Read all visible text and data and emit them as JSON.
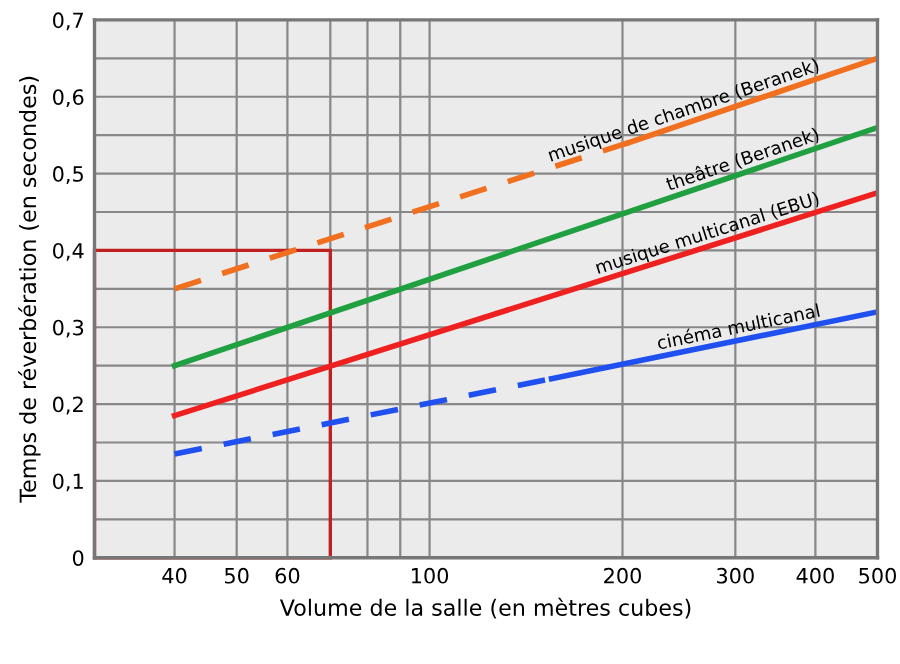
{
  "chart_data": {
    "type": "line",
    "xlabel": "Volume de la salle (en mètres cubes)",
    "ylabel": "Temps de réverbération (en secondes)",
    "log": "x",
    "xlim": [
      30,
      500
    ],
    "ylim": [
      0,
      0.7
    ],
    "xticks": [
      40,
      50,
      60,
      {
        "value": 70,
        "label": null
      },
      {
        "value": 80,
        "label": null
      },
      {
        "value": 90,
        "label": null
      },
      100,
      200,
      300,
      400,
      500
    ],
    "yticks": [
      0,
      {
        "value": 0.05,
        "label": null
      },
      {
        "value": 0.1,
        "label": "0,1"
      },
      {
        "value": 0.15,
        "label": null
      },
      {
        "value": 0.2,
        "label": "0,2"
      },
      {
        "value": 0.25,
        "label": null
      },
      {
        "value": 0.3,
        "label": "0,3"
      },
      {
        "value": 0.35,
        "label": null
      },
      {
        "value": 0.4,
        "label": "0,4"
      },
      {
        "value": 0.45,
        "label": null
      },
      {
        "value": 0.5,
        "label": "0,5"
      },
      {
        "value": 0.55,
        "label": null
      },
      {
        "value": 0.6,
        "label": "0,6"
      },
      {
        "value": 0.65,
        "label": null
      },
      {
        "value": 0.7,
        "label": "0,7"
      }
    ],
    "grid": true,
    "legend": false,
    "series": [
      {
        "color": "#f07020",
        "line_style": "dashed",
        "x": [
          40,
          204
        ],
        "values": [
          0.35,
          0.54
        ]
      },
      {
        "name": "musique de chambre (Beranek)",
        "color": "#f07020",
        "line_style": "solid",
        "x": [
          204,
          500
        ],
        "values": [
          0.54,
          0.65
        ]
      },
      {
        "name": "theâtre (Beranek)",
        "color": "#20a040",
        "line_style": "solid",
        "x": [
          40,
          500
        ],
        "values": [
          0.25,
          0.56
        ]
      },
      {
        "name": "musique multicanal (EBU)",
        "color": "#ee2020",
        "line_style": "solid",
        "x": [
          40,
          500
        ],
        "values": [
          0.185,
          0.475
        ]
      },
      {
        "color": "#2050f0",
        "line_style": "dashed",
        "x": [
          40,
          155
        ],
        "values": [
          0.135,
          0.233
        ]
      },
      {
        "name": "cinéma multicanal",
        "color": "#2050f0",
        "line_style": "solid",
        "x": [
          155,
          500
        ],
        "values": [
          0.233,
          0.32
        ]
      }
    ]
  }
}
